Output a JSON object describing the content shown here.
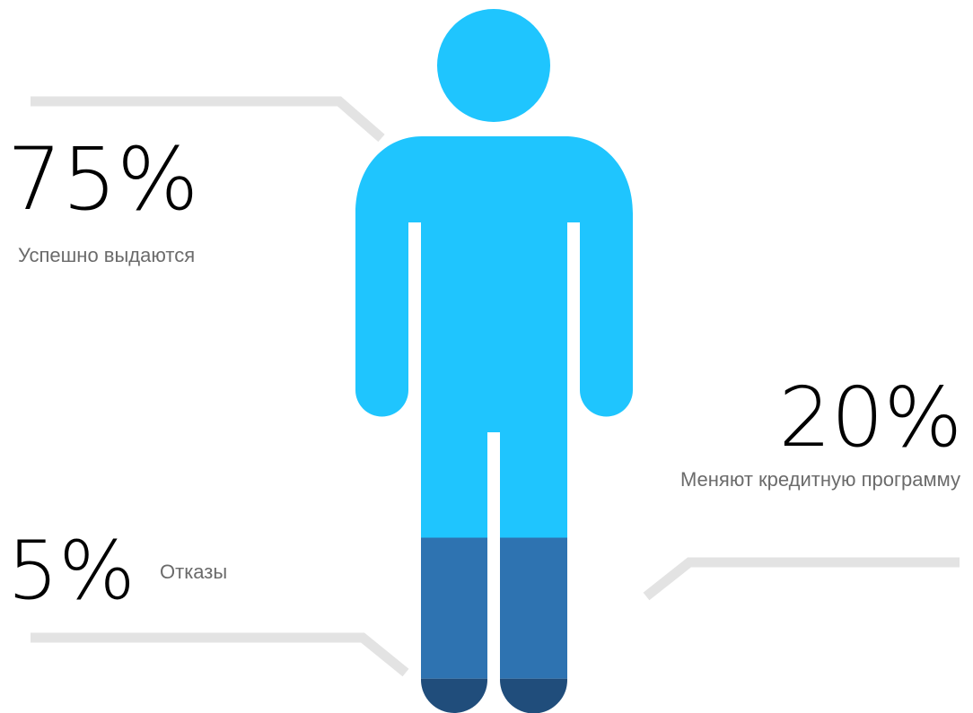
{
  "chart_data": {
    "type": "infographic",
    "segments": [
      {
        "value": "75%",
        "label": "Успешно выдаются",
        "color": "#1fc5fe"
      },
      {
        "value": "20%",
        "label": "Меняют кредитную программу",
        "color": "#2e73b1"
      },
      {
        "value": "5%",
        "label": "Отказы",
        "color": "#204d7b"
      }
    ],
    "leader_line_color": "#e3e3e3"
  }
}
